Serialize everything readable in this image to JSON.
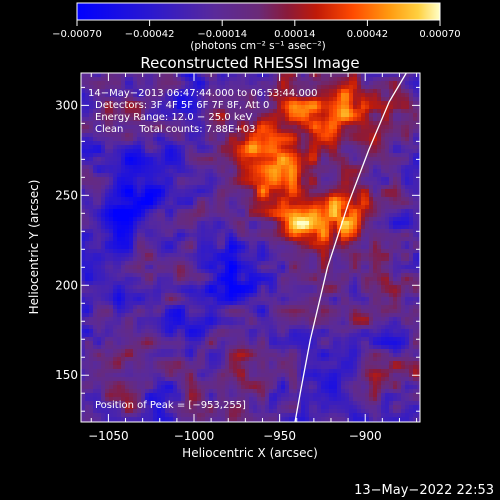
{
  "chart_data": {
    "type": "heatmap",
    "title": "Reconstructed RHESSI Image",
    "xlabel": "Heliocentric X (arcsec)",
    "ylabel": "Heliocentric Y (arcsec)",
    "xlim": [
      -1066,
      -868
    ],
    "ylim": [
      124,
      318
    ],
    "x_ticks": [
      -1050,
      -1000,
      -950,
      -900
    ],
    "x_tick_labels": [
      "−1050",
      "−1000",
      "−950",
      "−900"
    ],
    "y_ticks": [
      150,
      200,
      250,
      300
    ],
    "y_tick_labels": [
      "150",
      "200",
      "250",
      "300"
    ],
    "colorbar": {
      "range": [
        -0.0007,
        0.0007
      ],
      "ticks": [
        -0.0007,
        -0.00042,
        -0.00014,
        0.00014,
        0.00042,
        0.0007
      ],
      "tick_labels": [
        "−0.00070",
        "−0.00042",
        "−0.00014",
        "0.00014",
        "0.00042",
        "0.00070"
      ],
      "unit_label": "(photons cm⁻² s⁻¹ asec⁻²)",
      "colors": [
        "#0000ff",
        "#3a10c8",
        "#5a2a9a",
        "#6a2a7a",
        "#8a1a3a",
        "#a01010",
        "#e02000",
        "#ff5a00",
        "#ff9a10",
        "#ffd040",
        "#ffffc0"
      ]
    },
    "annotations": [
      "14−May−2013 06:47:44.000 to 06:53:44.000",
      "Detectors: 3F 4F 5F 6F 7F 8F, Att 0",
      "Energy Range: 12.0 − 25.0 keV",
      "Clean     Total counts: 7.88E+03",
      "Position of Peak = [−953,255]"
    ],
    "peak": {
      "x": -953,
      "y": 255
    },
    "limb_curve": {
      "x": [
        -941,
        -938,
        -932,
        -922,
        -910,
        -898,
        -886,
        -876
      ],
      "y": [
        124,
        140,
        170,
        210,
        245,
        275,
        302,
        318
      ]
    },
    "footer": "13−May−2022 22:53"
  }
}
